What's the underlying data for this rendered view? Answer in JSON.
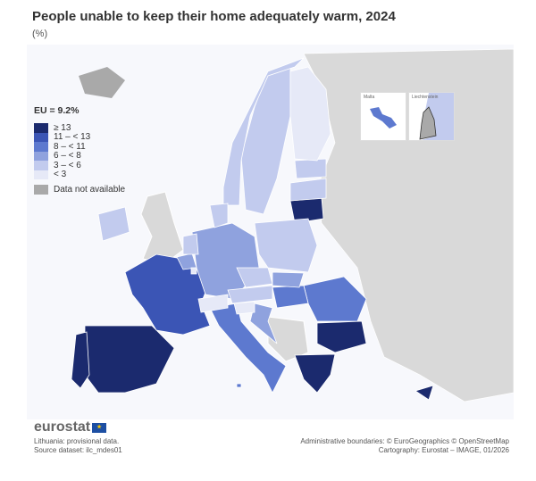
{
  "title": "People unable to keep their home adequately warm, 2024",
  "unit": "(%)",
  "legend": {
    "eu_value": "EU = 9.2%",
    "classes": [
      {
        "label": "≥ 13",
        "color": "#1b2a6e"
      },
      {
        "label": "11 – < 13",
        "color": "#3b55b5"
      },
      {
        "label": "8 – < 11",
        "color": "#5d79cf"
      },
      {
        "label": "6 – < 8",
        "color": "#8fa2de"
      },
      {
        "label": "3 – < 6",
        "color": "#c2cbee"
      },
      {
        "label": "< 3",
        "color": "#e6e9f7"
      }
    ],
    "not_available": "Data not available",
    "not_available_color": "#a9a9a9"
  },
  "insets": {
    "malta": "Malta",
    "liechtenstein": "Liechtenstein"
  },
  "logo": "eurostat",
  "footnotes": {
    "note": "Lithuania: provisional data.",
    "source": "Source dataset: ilc_mdes01",
    "boundaries": "Administrative boundaries: © EuroGeographics © OpenStreetMap",
    "cartography": "Cartography: Eurostat – IMAGE, 01/2026"
  },
  "chart_data": {
    "type": "choropleth",
    "title": "People unable to keep their home adequately warm, 2024",
    "unit": "%",
    "eu_average": 9.2,
    "countries": [
      {
        "country": "Spain",
        "class": "≥ 13"
      },
      {
        "country": "Portugal",
        "class": "≥ 13"
      },
      {
        "country": "Bulgaria",
        "class": "≥ 13"
      },
      {
        "country": "Greece",
        "class": "≥ 13"
      },
      {
        "country": "Lithuania",
        "class": "≥ 13"
      },
      {
        "country": "Cyprus",
        "class": "≥ 13"
      },
      {
        "country": "France",
        "class": "11 – < 13"
      },
      {
        "country": "Italy",
        "class": "8 – < 11"
      },
      {
        "country": "Romania",
        "class": "8 – < 11"
      },
      {
        "country": "Hungary",
        "class": "8 – < 11"
      },
      {
        "country": "Malta",
        "class": "8 – < 11"
      },
      {
        "country": "Germany",
        "class": "6 – < 8"
      },
      {
        "country": "Belgium",
        "class": "6 – < 8"
      },
      {
        "country": "Croatia",
        "class": "6 – < 8"
      },
      {
        "country": "Slovakia",
        "class": "6 – < 8"
      },
      {
        "country": "Sweden",
        "class": "3 – < 6"
      },
      {
        "country": "Norway",
        "class": "3 – < 6"
      },
      {
        "country": "Denmark",
        "class": "3 – < 6"
      },
      {
        "country": "Ireland",
        "class": "3 – < 6"
      },
      {
        "country": "Netherlands",
        "class": "3 – < 6"
      },
      {
        "country": "Poland",
        "class": "3 – < 6"
      },
      {
        "country": "Czechia",
        "class": "3 – < 6"
      },
      {
        "country": "Austria",
        "class": "3 – < 6"
      },
      {
        "country": "Latvia",
        "class": "3 – < 6"
      },
      {
        "country": "Estonia",
        "class": "3 – < 6"
      },
      {
        "country": "Finland",
        "class": "< 3"
      },
      {
        "country": "Slovenia",
        "class": "< 3"
      },
      {
        "country": "Switzerland",
        "class": "< 3"
      },
      {
        "country": "Luxembourg",
        "class": "< 3"
      },
      {
        "country": "Iceland",
        "class": "Data not available"
      },
      {
        "country": "United Kingdom",
        "class": "Data not available"
      }
    ]
  }
}
